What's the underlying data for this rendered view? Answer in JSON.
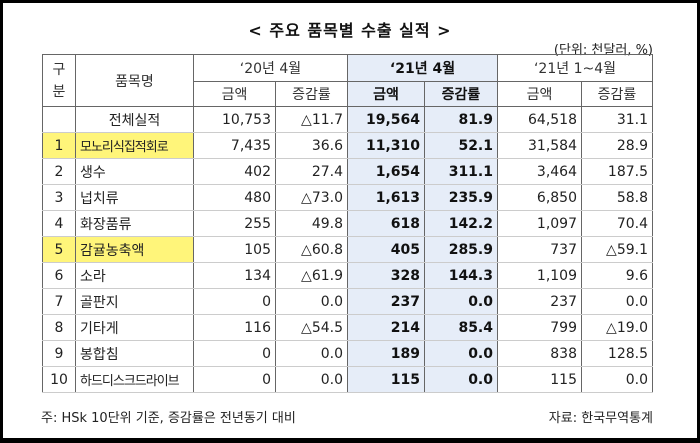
{
  "title": "< 주요 품목별 수출 실적 >",
  "unit": "(단위: 천달러, %)",
  "header": {
    "col_gubun": "구\n분",
    "col_gubun_1": "구",
    "col_gubun_2": "분",
    "col_item": "품목명",
    "period_2020_apr": "‘20년 4월",
    "period_2021_apr": "‘21년 4월",
    "period_2021_jan_apr": "‘21년 1~4월",
    "amount": "금액",
    "growth": "증감률"
  },
  "rows": [
    {
      "no": "",
      "item": "전체실적",
      "a20": "10,753",
      "g20": "△11.7",
      "a21": "19,564",
      "g21": "81.9",
      "a21c": "64,518",
      "g21c": "31.1",
      "highlight": false
    },
    {
      "no": "1",
      "item": "모노리식집적회로",
      "a20": "7,435",
      "g20": "36.6",
      "a21": "11,310",
      "g21": "52.1",
      "a21c": "31,584",
      "g21c": "28.9",
      "highlight": true
    },
    {
      "no": "2",
      "item": "생수",
      "a20": "402",
      "g20": "27.4",
      "a21": "1,654",
      "g21": "311.1",
      "a21c": "3,464",
      "g21c": "187.5",
      "highlight": false
    },
    {
      "no": "3",
      "item": "넙치류",
      "a20": "480",
      "g20": "△73.0",
      "a21": "1,613",
      "g21": "235.9",
      "a21c": "6,850",
      "g21c": "58.8",
      "highlight": false
    },
    {
      "no": "4",
      "item": "화장품류",
      "a20": "255",
      "g20": "49.8",
      "a21": "618",
      "g21": "142.2",
      "a21c": "1,097",
      "g21c": "70.4",
      "highlight": false
    },
    {
      "no": "5",
      "item": "감귤농축액",
      "a20": "105",
      "g20": "△60.8",
      "a21": "405",
      "g21": "285.9",
      "a21c": "737",
      "g21c": "△59.1",
      "highlight": true
    },
    {
      "no": "6",
      "item": "소라",
      "a20": "134",
      "g20": "△61.9",
      "a21": "328",
      "g21": "144.3",
      "a21c": "1,109",
      "g21c": "9.6",
      "highlight": false
    },
    {
      "no": "7",
      "item": "골판지",
      "a20": "0",
      "g20": "0.0",
      "a21": "237",
      "g21": "0.0",
      "a21c": "237",
      "g21c": "0.0",
      "highlight": false
    },
    {
      "no": "8",
      "item": "기타게",
      "a20": "116",
      "g20": "△54.5",
      "a21": "214",
      "g21": "85.4",
      "a21c": "799",
      "g21c": "△19.0",
      "highlight": false
    },
    {
      "no": "9",
      "item": "봉합침",
      "a20": "0",
      "g20": "0.0",
      "a21": "189",
      "g21": "0.0",
      "a21c": "838",
      "g21c": "128.5",
      "highlight": false
    },
    {
      "no": "10",
      "item": "하드디스크드라이브",
      "a20": "0",
      "g20": "0.0",
      "a21": "115",
      "g21": "0.0",
      "a21c": "115",
      "g21c": "0.0",
      "highlight": false
    }
  ],
  "footer": {
    "note": "주: HSk 10단위 기준, 증감률은 전년동기 대비",
    "source": "자료: 한국무역통계"
  },
  "colors": {
    "highlight_yellow": "#fff57a",
    "focus_column_bg": "#e6edf8"
  }
}
